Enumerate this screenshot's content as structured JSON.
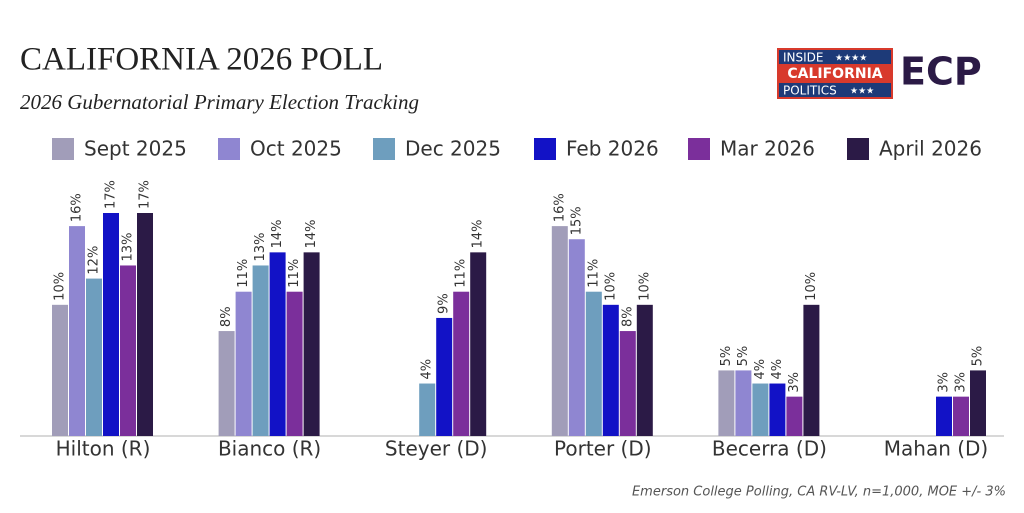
{
  "chart_data": {
    "type": "bar",
    "title": "CALIFORNIA 2026 POLL",
    "subtitle": "2026 Gubernatorial Primary Election Tracking",
    "source": "Emerson College Polling, CA RV-LV, n=1,000, MOE +/- 3%",
    "logo_text": [
      "INSIDE",
      "CALIFORNIA",
      "POLITICS",
      "ECP"
    ],
    "categories": [
      "Hilton (R)",
      "Bianco (R)",
      "Steyer (D)",
      "Porter (D)",
      "Becerra (D)",
      "Mahan (D)"
    ],
    "ylim": [
      0,
      17
    ],
    "grid": false,
    "legend": "top",
    "series": [
      {
        "name": "Sept 2025",
        "color": "#a19db9",
        "values": [
          10,
          8,
          null,
          16,
          5,
          null
        ],
        "value_labels": [
          "10%",
          "8%",
          null,
          "16%",
          "5%",
          null
        ]
      },
      {
        "name": "Oct 2025",
        "color": "#8f86d1",
        "values": [
          16,
          11,
          null,
          15,
          5,
          null
        ],
        "value_labels": [
          "16%",
          "11%",
          null,
          "15%",
          "5%",
          null
        ]
      },
      {
        "name": "Dec 2025",
        "color": "#6e9ebe",
        "values": [
          12,
          13,
          4,
          11,
          4,
          null
        ],
        "value_labels": [
          "12%",
          "13%",
          "4%",
          "11%",
          "4%",
          null
        ]
      },
      {
        "name": "Feb 2026",
        "color": "#1212c6",
        "values": [
          17,
          14,
          9,
          10,
          4,
          3
        ],
        "value_labels": [
          "17%",
          "14%",
          "9%",
          "10%",
          "4%",
          "3%"
        ]
      },
      {
        "name": "Mar 2026",
        "color": "#7b2f9b",
        "values": [
          13,
          11,
          11,
          8,
          3,
          3
        ],
        "value_labels": [
          "13%",
          "11%",
          "11%",
          "8%",
          "3%",
          "3%"
        ]
      },
      {
        "name": "April 2026",
        "color": "#2b1a46",
        "values": [
          17,
          14,
          14,
          10,
          10,
          5
        ],
        "value_labels": [
          "17%",
          "14%",
          "14%",
          "10%",
          "10%",
          "5%"
        ]
      }
    ]
  }
}
